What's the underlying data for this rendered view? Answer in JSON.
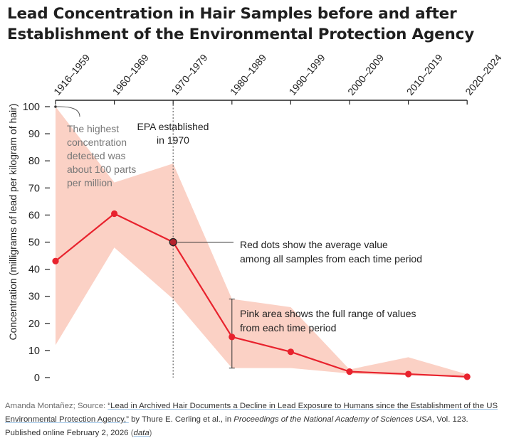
{
  "title_lines": [
    "Lead Concentration in Hair Samples before and after",
    "Establishment of the Environmental Protection Agency"
  ],
  "chart_data": {
    "type": "line",
    "title": "Lead Concentration in Hair Samples before and after Establishment of the Environmental Protection Agency",
    "ylabel": "Concentration (milligrams of lead per kilogram of hair)",
    "xlabel": "",
    "categories": [
      "1916–1959",
      "1960–1969",
      "1970–1979",
      "1980–1989",
      "1990–1999",
      "2000–2009",
      "2010–2019",
      "2020–2024"
    ],
    "ylim": [
      0,
      100
    ],
    "yticks": [
      0,
      10,
      20,
      30,
      40,
      50,
      60,
      70,
      80,
      90,
      100
    ],
    "series": [
      {
        "name": "Average",
        "values": [
          43,
          60.5,
          50,
          15,
          9.5,
          2.2,
          1.3,
          0.3
        ]
      },
      {
        "name": "Maximum",
        "values": [
          100,
          72,
          79,
          29,
          26,
          3,
          7.5,
          1.2
        ]
      },
      {
        "name": "Minimum",
        "values": [
          12,
          48,
          29,
          3.5,
          3.5,
          1.5,
          0.8,
          0.2
        ]
      }
    ],
    "epa_marker": "1970",
    "annotations": {
      "highest": [
        "The highest",
        "concentration",
        "detected was",
        "about 100 parts",
        "per million"
      ],
      "epa": [
        "EPA established",
        "in 1970"
      ],
      "red_dots": [
        "Red dots show the average value",
        "among all samples from each time period"
      ],
      "pink_area": [
        "Pink area shows the full range of values",
        "from each time period"
      ]
    },
    "colors": {
      "line": "#e8222d",
      "area": "#fbd1c5",
      "axis": "#222222",
      "muted_text": "#777777",
      "highlight_dot": "#b5222d"
    }
  },
  "source": {
    "author": "Amanda Montañez; Source: ",
    "article_title": "“Lead in Archived Hair Documents a Decline in Lead Exposure to Humans since the Establishment of the US Environmental Protection Agency,”",
    "authors": " by Thure E. Cerling et al., in ",
    "journal": "Proceedings of the National Academy of Sciences USA",
    "volume": ", Vol. 123. Published online February 2, 2026",
    "data_label": "data"
  }
}
